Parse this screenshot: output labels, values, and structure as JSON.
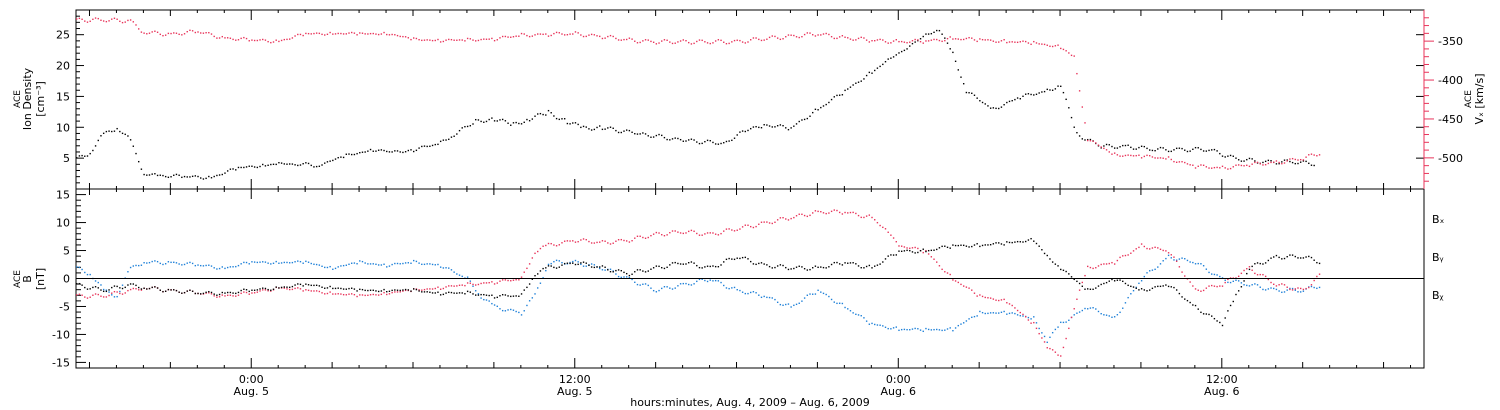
{
  "chart_data": [
    {
      "type": "scatter",
      "panel": "top",
      "ylabel_left": [
        "ACE",
        "Ion Density",
        "[cm⁻³]"
      ],
      "ylabel_right": [
        "ACE",
        "Vₓ [km/s]"
      ],
      "ylim_left": [
        0,
        29
      ],
      "ylim_right": [
        -540,
        -310
      ],
      "yticks_left": [
        "5",
        "10",
        "15",
        "20",
        "25"
      ],
      "yticks_right": [
        "-350",
        "-400",
        "-450",
        "-500"
      ],
      "xlim_hours": [
        -6.5,
        43.5
      ],
      "series": [
        {
          "axis": "left",
          "color": "#000000",
          "points": [
            [
              -6.5,
              5
            ],
            [
              -6,
              6
            ],
            [
              -5.5,
              9
            ],
            [
              -5,
              10
            ],
            [
              -4.5,
              8
            ],
            [
              -4,
              2.5
            ],
            [
              -3.5,
              2.3
            ],
            [
              -2.5,
              2.1
            ],
            [
              -1.5,
              2
            ],
            [
              -0.5,
              3.5
            ],
            [
              0.5,
              4
            ],
            [
              1,
              4.2
            ],
            [
              2.5,
              4
            ],
            [
              3.5,
              5.5
            ],
            [
              4.5,
              6.5
            ],
            [
              5.3,
              6
            ],
            [
              6,
              6.5
            ],
            [
              7,
              7.5
            ],
            [
              7.5,
              9
            ],
            [
              8.3,
              11
            ],
            [
              9,
              11.5
            ],
            [
              9.7,
              10.5
            ],
            [
              10.3,
              11.5
            ],
            [
              11,
              12.5
            ],
            [
              11.7,
              11
            ],
            [
              12.3,
              10
            ],
            [
              13,
              10
            ],
            [
              14.5,
              9
            ],
            [
              16,
              8
            ],
            [
              17.5,
              7.5
            ],
            [
              18.3,
              9.5
            ],
            [
              19,
              10.5
            ],
            [
              20,
              10
            ],
            [
              21,
              13
            ],
            [
              22,
              16
            ],
            [
              23,
              19
            ],
            [
              23.6,
              21
            ],
            [
              24.3,
              23
            ],
            [
              25,
              25
            ],
            [
              25.5,
              26
            ],
            [
              26,
              22
            ],
            [
              26.5,
              16
            ],
            [
              27.5,
              13
            ],
            [
              28.5,
              15
            ],
            [
              29.5,
              16
            ],
            [
              30,
              17
            ],
            [
              30.6,
              9
            ],
            [
              31.5,
              7
            ],
            [
              32.5,
              7
            ],
            [
              33.5,
              6.5
            ],
            [
              34.5,
              6.5
            ],
            [
              35.5,
              6.5
            ],
            [
              36.5,
              5
            ],
            [
              37.5,
              4.5
            ],
            [
              38.5,
              4.5
            ],
            [
              39.5,
              4.2
            ]
          ]
        },
        {
          "axis": "right",
          "color": "#e8345a",
          "points": [
            [
              -6.5,
              -322
            ],
            [
              -5.5,
              -322
            ],
            [
              -4.5,
              -323
            ],
            [
              -4,
              -338
            ],
            [
              -3,
              -340
            ],
            [
              -2,
              -337
            ],
            [
              -1,
              -345
            ],
            [
              0,
              -348
            ],
            [
              1,
              -349
            ],
            [
              2,
              -340
            ],
            [
              3,
              -339
            ],
            [
              4,
              -340
            ],
            [
              5,
              -339
            ],
            [
              6,
              -347
            ],
            [
              7,
              -348
            ],
            [
              8,
              -348
            ],
            [
              9,
              -346
            ],
            [
              10,
              -342
            ],
            [
              11,
              -340
            ],
            [
              12,
              -340
            ],
            [
              13,
              -343
            ],
            [
              14,
              -348
            ],
            [
              15,
              -350
            ],
            [
              16,
              -350
            ],
            [
              17,
              -350
            ],
            [
              18,
              -350
            ],
            [
              19,
              -346
            ],
            [
              20,
              -343
            ],
            [
              21,
              -340
            ],
            [
              22,
              -345
            ],
            [
              23,
              -348
            ],
            [
              24,
              -350
            ],
            [
              25,
              -349
            ],
            [
              26,
              -346
            ],
            [
              27,
              -347
            ],
            [
              28,
              -350
            ],
            [
              29,
              -351
            ],
            [
              30,
              -357
            ],
            [
              30.5,
              -370
            ],
            [
              31,
              -475
            ],
            [
              32,
              -495
            ],
            [
              33,
              -497
            ],
            [
              34,
              -500
            ],
            [
              35,
              -510
            ],
            [
              36,
              -512
            ],
            [
              37,
              -508
            ],
            [
              38,
              -505
            ],
            [
              39,
              -500
            ],
            [
              39.7,
              -492
            ]
          ]
        }
      ]
    },
    {
      "type": "scatter",
      "panel": "bottom",
      "ylabel_left": [
        "ACE",
        "B",
        "[nT]"
      ],
      "ylim": [
        -16,
        16
      ],
      "yticks": [
        "15",
        "10",
        "5",
        "0",
        "-5",
        "-10",
        "-15"
      ],
      "xlim_hours": [
        -6.5,
        43.5
      ],
      "legend": [
        "Bₓ",
        "Bᵧ",
        "Bᵪ"
      ],
      "series": [
        {
          "name": "Bₓ",
          "color": "#000000",
          "points": [
            [
              -6.5,
              -1
            ],
            [
              -5.5,
              -2
            ],
            [
              -4.5,
              -1
            ],
            [
              -4,
              -1.5
            ],
            [
              -3,
              -2
            ],
            [
              -2,
              -2.5
            ],
            [
              -1,
              -2.5
            ],
            [
              0,
              -2
            ],
            [
              1,
              -1.5
            ],
            [
              2,
              -1
            ],
            [
              3,
              -1.5
            ],
            [
              4,
              -2
            ],
            [
              5,
              -2
            ],
            [
              6,
              -2
            ],
            [
              7,
              -2.5
            ],
            [
              8,
              -2.5
            ],
            [
              9,
              -3
            ],
            [
              10,
              -3
            ],
            [
              10.5,
              1
            ],
            [
              11,
              2
            ],
            [
              12,
              3
            ],
            [
              13,
              2
            ],
            [
              14,
              1
            ],
            [
              15,
              2
            ],
            [
              16,
              3
            ],
            [
              17,
              2
            ],
            [
              18,
              4
            ],
            [
              19,
              2.5
            ],
            [
              20,
              2
            ],
            [
              21,
              2
            ],
            [
              22,
              3
            ],
            [
              23,
              2
            ],
            [
              24,
              5
            ],
            [
              25,
              5
            ],
            [
              26,
              6
            ],
            [
              27,
              6
            ],
            [
              28,
              6.5
            ],
            [
              29,
              7
            ],
            [
              29.5,
              4
            ],
            [
              30,
              2
            ],
            [
              31,
              -2
            ],
            [
              32,
              0
            ],
            [
              33,
              -2
            ],
            [
              34,
              -1
            ],
            [
              35,
              -5
            ],
            [
              36,
              -8
            ],
            [
              36.5,
              -3
            ],
            [
              37,
              2
            ],
            [
              38,
              4
            ],
            [
              39,
              4
            ],
            [
              39.7,
              3
            ]
          ]
        },
        {
          "name": "Bᵧ",
          "color": "#1e80d8",
          "points": [
            [
              -6.5,
              2
            ],
            [
              -6,
              1
            ],
            [
              -5.5,
              -2
            ],
            [
              -5,
              -3
            ],
            [
              -4.5,
              2
            ],
            [
              -4,
              3
            ],
            [
              -3,
              3
            ],
            [
              -2,
              2.5
            ],
            [
              -1,
              2
            ],
            [
              0,
              3
            ],
            [
              1,
              3
            ],
            [
              2,
              3
            ],
            [
              3,
              2
            ],
            [
              4,
              3
            ],
            [
              5,
              2.5
            ],
            [
              6,
              3
            ],
            [
              7,
              2.5
            ],
            [
              8,
              0
            ],
            [
              8.5,
              -3
            ],
            [
              9,
              -5
            ],
            [
              10,
              -6
            ],
            [
              10.5,
              -3
            ],
            [
              11,
              3
            ],
            [
              12,
              3
            ],
            [
              13,
              2
            ],
            [
              14,
              0
            ],
            [
              15,
              -2
            ],
            [
              16,
              -1
            ],
            [
              17,
              0
            ],
            [
              18,
              -2
            ],
            [
              19,
              -3
            ],
            [
              20,
              -5
            ],
            [
              21,
              -2
            ],
            [
              22,
              -5
            ],
            [
              23,
              -8
            ],
            [
              24,
              -9
            ],
            [
              25,
              -9
            ],
            [
              26,
              -9
            ],
            [
              27,
              -6
            ],
            [
              28,
              -6
            ],
            [
              29,
              -7
            ],
            [
              29.5,
              -11
            ],
            [
              30,
              -8
            ],
            [
              31,
              -5
            ],
            [
              32,
              -7
            ],
            [
              33,
              0
            ],
            [
              34,
              4
            ],
            [
              35,
              3
            ],
            [
              36,
              0
            ],
            [
              37,
              -1
            ],
            [
              38,
              -2
            ],
            [
              39,
              -2
            ],
            [
              39.7,
              -1
            ]
          ]
        },
        {
          "name": "Bᵪ",
          "color": "#e8345a",
          "points": [
            [
              -6.5,
              -3
            ],
            [
              -5.5,
              -3
            ],
            [
              -4.5,
              -2
            ],
            [
              -4,
              -1.5
            ],
            [
              -3,
              -2
            ],
            [
              -2,
              -2.5
            ],
            [
              -1,
              -3
            ],
            [
              0,
              -2.5
            ],
            [
              1,
              -1.5
            ],
            [
              2,
              -2
            ],
            [
              3,
              -2.5
            ],
            [
              4,
              -3
            ],
            [
              5,
              -2.5
            ],
            [
              6,
              -2
            ],
            [
              7,
              -1.5
            ],
            [
              8,
              -1
            ],
            [
              9,
              -0.5
            ],
            [
              10,
              0
            ],
            [
              10.5,
              5
            ],
            [
              11,
              6
            ],
            [
              12,
              7
            ],
            [
              13,
              6.5
            ],
            [
              14,
              7
            ],
            [
              15,
              8
            ],
            [
              16,
              8.5
            ],
            [
              17,
              8
            ],
            [
              18,
              9
            ],
            [
              19,
              10
            ],
            [
              20,
              11
            ],
            [
              21,
              12
            ],
            [
              22,
              12
            ],
            [
              23,
              11
            ],
            [
              23.5,
              9
            ],
            [
              24,
              6
            ],
            [
              25,
              5
            ],
            [
              26,
              0
            ],
            [
              27,
              -3
            ],
            [
              28,
              -4
            ],
            [
              29,
              -8
            ],
            [
              29.5,
              -12
            ],
            [
              30,
              -14
            ],
            [
              30.5,
              -5
            ],
            [
              31,
              2
            ],
            [
              32,
              3
            ],
            [
              33,
              6
            ],
            [
              34,
              5
            ],
            [
              35,
              -2
            ],
            [
              36,
              -1
            ],
            [
              37,
              2
            ],
            [
              38,
              -1
            ],
            [
              39,
              -2
            ],
            [
              39.7,
              1
            ]
          ]
        }
      ]
    }
  ],
  "x_axis": {
    "ticks": [
      {
        "hour": 0,
        "time": "0:00",
        "date": "Aug. 5"
      },
      {
        "hour": 12,
        "time": "12:00",
        "date": "Aug. 5"
      },
      {
        "hour": 24,
        "time": "0:00",
        "date": "Aug. 6"
      },
      {
        "hour": 36,
        "time": "12:00",
        "date": "Aug. 6"
      }
    ],
    "label": "hours:minutes, Aug.  4, 2009 – Aug.  6, 2009"
  },
  "colors": {
    "black": "#000000",
    "red": "#e8345a",
    "blue": "#1e80d8"
  }
}
